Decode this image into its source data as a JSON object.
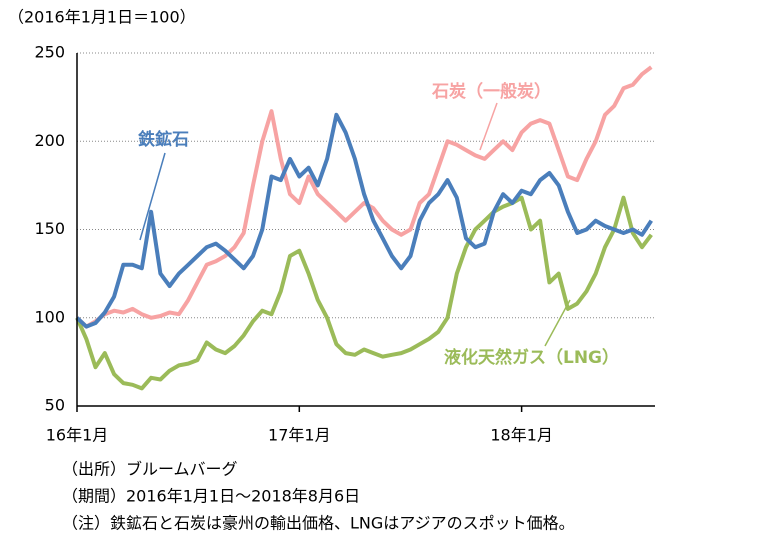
{
  "chart_data": {
    "type": "line",
    "y_label": "（2016年1月1日＝100）",
    "x": [
      0,
      0.5,
      1,
      1.5,
      2,
      2.5,
      3,
      3.5,
      4,
      4.5,
      5,
      5.5,
      6,
      6.5,
      7,
      7.5,
      8,
      8.5,
      9,
      9.5,
      10,
      10.5,
      11,
      11.5,
      12,
      12.5,
      13,
      13.5,
      14,
      14.5,
      15,
      15.5,
      16,
      16.5,
      17,
      17.5,
      18,
      18.5,
      19,
      19.5,
      20,
      20.5,
      21,
      21.5,
      22,
      22.5,
      23,
      23.5,
      24,
      24.5,
      25,
      25.5,
      26,
      26.5,
      27,
      27.5,
      28,
      28.5,
      29,
      29.5,
      30,
      30.5,
      31
    ],
    "xlim": [
      0,
      31.2
    ],
    "xticks": [
      {
        "value": 0,
        "label": "16年1月"
      },
      {
        "value": 12,
        "label": "17年1月"
      },
      {
        "value": 24,
        "label": "18年1月"
      }
    ],
    "ylim": [
      50,
      250
    ],
    "yticks": [
      50,
      100,
      150,
      200,
      250
    ],
    "grid": true,
    "series": [
      {
        "name": "石炭（一般炭）",
        "color": "#f7a3a3",
        "values": [
          100,
          95,
          98,
          102,
          104,
          103,
          105,
          102,
          100,
          101,
          103,
          102,
          110,
          120,
          130,
          132,
          135,
          140,
          148,
          175,
          200,
          217,
          190,
          170,
          165,
          180,
          170,
          165,
          160,
          155,
          160,
          165,
          162,
          155,
          150,
          147,
          150,
          165,
          170,
          185,
          200,
          198,
          195,
          192,
          190,
          195,
          200,
          195,
          205,
          210,
          212,
          210,
          195,
          180,
          178,
          190,
          200,
          215,
          220,
          230,
          232,
          238,
          242
        ]
      },
      {
        "name": "液化天然ガス（LNG）",
        "color": "#9bbb59",
        "values": [
          100,
          88,
          72,
          80,
          68,
          63,
          62,
          60,
          66,
          65,
          70,
          73,
          74,
          76,
          86,
          82,
          80,
          84,
          90,
          98,
          104,
          102,
          115,
          135,
          138,
          125,
          110,
          100,
          85,
          80,
          79,
          82,
          80,
          78,
          79,
          80,
          82,
          85,
          88,
          92,
          100,
          125,
          140,
          150,
          155,
          160,
          163,
          165,
          168,
          150,
          155,
          120,
          125,
          105,
          108,
          115,
          125,
          140,
          150,
          168,
          148,
          140,
          147
        ]
      },
      {
        "name": "鉄鉱石",
        "color": "#4a7ebb",
        "values": [
          100,
          95,
          97,
          103,
          112,
          130,
          130,
          128,
          160,
          125,
          118,
          125,
          130,
          135,
          140,
          142,
          138,
          133,
          128,
          135,
          150,
          180,
          178,
          190,
          180,
          185,
          175,
          190,
          215,
          205,
          190,
          170,
          155,
          145,
          135,
          128,
          135,
          155,
          165,
          170,
          178,
          168,
          145,
          140,
          142,
          160,
          170,
          165,
          172,
          170,
          178,
          182,
          175,
          160,
          148,
          150,
          155,
          152,
          150,
          148,
          150,
          147,
          155
        ]
      }
    ],
    "notes": [
      "（出所）ブルームバーグ",
      "（期間）2016年1月1日～2018年8月6日",
      "（注）鉄鉱石と石炭は豪州の輸出価格、LNGはアジアのスポット価格。"
    ]
  }
}
